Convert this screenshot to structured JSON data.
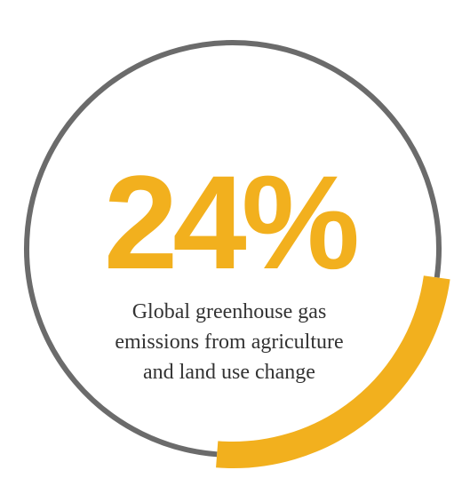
{
  "chart_data": {
    "type": "pie",
    "title": "",
    "value_label": "24%",
    "slices": [
      {
        "label": "Global greenhouse gas emissions from agriculture and land use change",
        "value": 24,
        "color": "#f2b01e"
      },
      {
        "label": "",
        "value": 76,
        "color": "#6b6b6b"
      }
    ],
    "caption_lines": [
      "Global greenhouse gas",
      "emissions from agriculture",
      "and land use change"
    ]
  },
  "colors": {
    "accent": "#f2b01e",
    "ring": "#6b6b6b",
    "text": "#333333"
  }
}
